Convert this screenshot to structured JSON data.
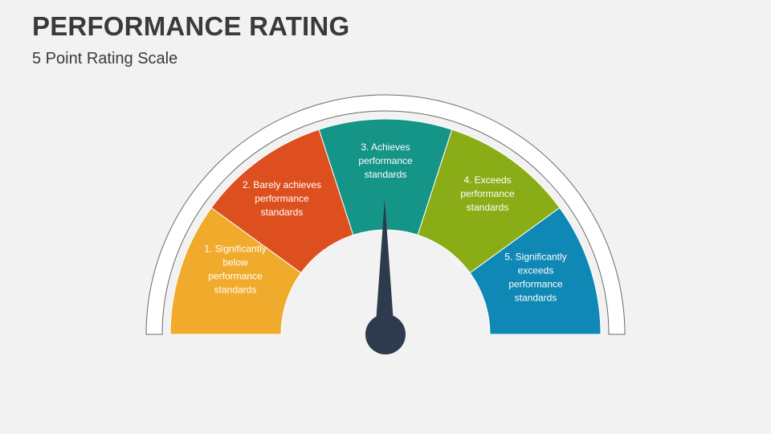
{
  "title": "PERFORMANCE RATING",
  "subtitle": "5 Point Rating Scale",
  "segments": [
    {
      "lines": [
        "1. Significantly",
        "below",
        "performance",
        "standards"
      ],
      "color": "#f0ab2c"
    },
    {
      "lines": [
        "2. Barely achieves",
        "performance",
        "standards"
      ],
      "color": "#de4f1f"
    },
    {
      "lines": [
        "3. Achieves",
        "performance",
        "standards"
      ],
      "color": "#159488"
    },
    {
      "lines": [
        "4. Exceeds",
        "performance",
        "standards"
      ],
      "color": "#8aad17"
    },
    {
      "lines": [
        "5. Significantly",
        "exceeds",
        "performance",
        "standards"
      ],
      "color": "#0f88b5"
    }
  ],
  "needle": {
    "color": "#2e3b4e",
    "points_to_segment": 3
  }
}
